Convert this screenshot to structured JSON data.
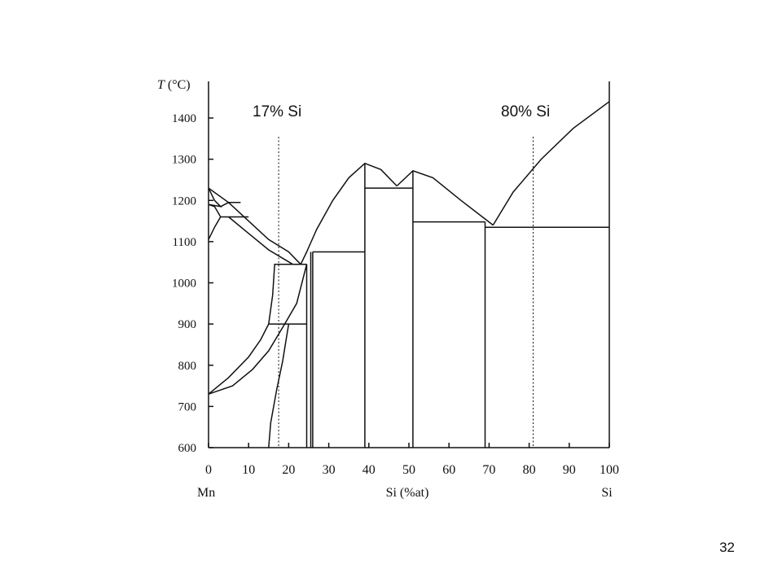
{
  "slide": {
    "page_number": "32"
  },
  "chart_data": {
    "type": "line",
    "title": "",
    "ylabel_italic": "T",
    "ylabel_rest": " (°C)",
    "xlabel": "Si (%at)",
    "left_label": "Mn",
    "right_label": "Si",
    "xlim": [
      0,
      100
    ],
    "ylim": [
      600,
      1500
    ],
    "x_ticks": [
      0,
      10,
      20,
      30,
      40,
      50,
      60,
      70,
      80,
      90,
      100
    ],
    "y_ticks": [
      600,
      700,
      800,
      900,
      1000,
      1100,
      1200,
      1300,
      1400
    ],
    "grid": false,
    "annotations": [
      {
        "text": "17% Si",
        "x": 17
      },
      {
        "text": "80% Si",
        "x": 80
      }
    ],
    "series": [
      {
        "points": [
          [
            0,
            1230
          ],
          [
            5,
            1195
          ],
          [
            10,
            1150
          ],
          [
            15,
            1105
          ],
          [
            20,
            1075
          ],
          [
            22,
            1055
          ],
          [
            23,
            1045
          ]
        ]
      },
      {
        "points": [
          [
            23,
            1045
          ],
          [
            24.5,
            1075
          ],
          [
            27,
            1130
          ],
          [
            31,
            1200
          ],
          [
            35,
            1255
          ],
          [
            39,
            1290
          ],
          [
            43,
            1275
          ],
          [
            47,
            1235
          ]
        ]
      },
      {
        "points": [
          [
            47,
            1235
          ],
          [
            51,
            1272
          ],
          [
            56,
            1255
          ],
          [
            63,
            1200
          ],
          [
            71,
            1140
          ]
        ]
      },
      {
        "points": [
          [
            71,
            1140
          ],
          [
            76,
            1220
          ],
          [
            83,
            1300
          ],
          [
            91,
            1375
          ],
          [
            100,
            1440
          ]
        ]
      },
      {
        "points": [
          [
            0,
            1230
          ],
          [
            1.5,
            1200
          ],
          [
            3,
            1185
          ],
          [
            0,
            1190
          ]
        ]
      },
      {
        "points": [
          [
            0,
            1105
          ],
          [
            1.5,
            1135
          ],
          [
            3,
            1160
          ],
          [
            1.5,
            1185
          ],
          [
            0,
            1190
          ]
        ]
      },
      {
        "points": [
          [
            3,
            1185
          ],
          [
            5,
            1195
          ],
          [
            8,
            1195
          ]
        ]
      },
      {
        "points": [
          [
            3,
            1160
          ],
          [
            10,
            1160
          ]
        ]
      },
      {
        "points": [
          [
            5,
            1160
          ],
          [
            10,
            1120
          ],
          [
            15,
            1080
          ],
          [
            21,
            1045
          ],
          [
            24.5,
            1045
          ]
        ]
      },
      {
        "points": [
          [
            0,
            730
          ],
          [
            5,
            770
          ],
          [
            10,
            820
          ],
          [
            13,
            862
          ],
          [
            15,
            900
          ],
          [
            16,
            970
          ],
          [
            16.5,
            1045
          ],
          [
            22,
            1045
          ]
        ]
      },
      {
        "points": [
          [
            0,
            730
          ],
          [
            6,
            750
          ],
          [
            11,
            790
          ],
          [
            15,
            835
          ],
          [
            19,
            900
          ],
          [
            22,
            950
          ],
          [
            24.5,
            1045
          ]
        ]
      },
      {
        "points": [
          [
            15,
            600
          ],
          [
            15.5,
            660
          ],
          [
            17,
            740
          ],
          [
            18.5,
            810
          ],
          [
            19.5,
            870
          ],
          [
            20,
            900
          ]
        ]
      },
      {
        "points": [
          [
            15,
            900
          ],
          [
            24.5,
            900
          ]
        ]
      },
      {
        "points": [
          [
            24.5,
            1045
          ],
          [
            24.5,
            600
          ]
        ]
      },
      {
        "points": [
          [
            25.5,
            1075
          ],
          [
            25.5,
            600
          ]
        ]
      },
      {
        "points": [
          [
            26,
            1075
          ],
          [
            26,
            600
          ]
        ]
      },
      {
        "points": [
          [
            26,
            1075
          ],
          [
            39,
            1075
          ]
        ]
      },
      {
        "points": [
          [
            39,
            1290
          ],
          [
            39,
            600
          ]
        ]
      },
      {
        "points": [
          [
            39,
            1230
          ],
          [
            51,
            1230
          ]
        ]
      },
      {
        "points": [
          [
            51,
            1272
          ],
          [
            51,
            600
          ]
        ]
      },
      {
        "points": [
          [
            51,
            1148
          ],
          [
            69,
            1148
          ]
        ]
      },
      {
        "points": [
          [
            69,
            1148
          ],
          [
            69,
            600
          ]
        ]
      },
      {
        "points": [
          [
            69,
            1135
          ],
          [
            100,
            1135
          ]
        ]
      }
    ],
    "reference_lines": [
      17.5,
      81
    ]
  }
}
